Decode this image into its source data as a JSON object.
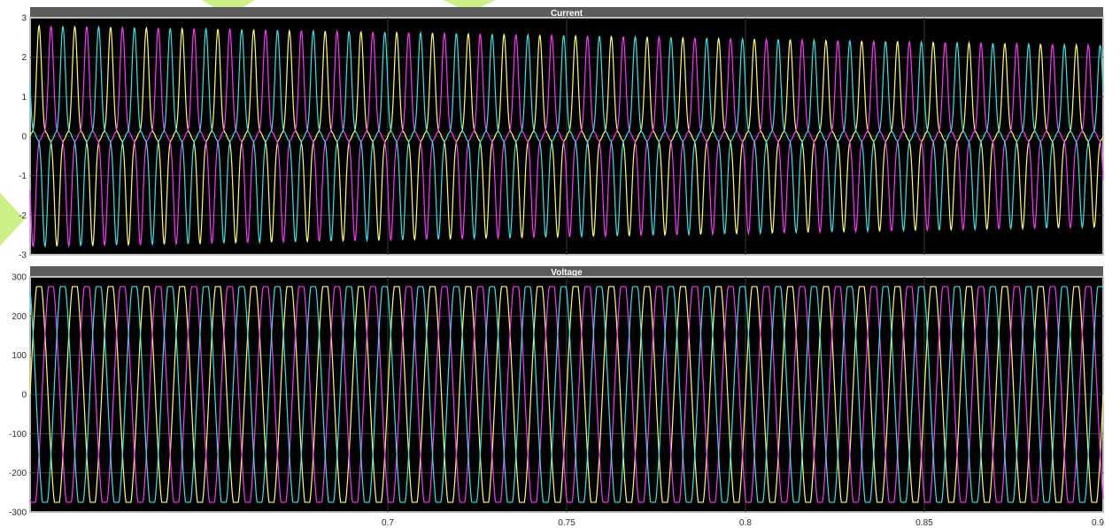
{
  "theme": {
    "background": "#000000",
    "axes_frame": "#bfbfbf",
    "grid": "#3d3d3d",
    "title_bar": "#5b5b5b",
    "title_text": "#ffffff",
    "tick_text": "#2d2d2d",
    "phase_colors": [
      "#ffff66",
      "#ff33ff",
      "#33e6e6"
    ],
    "watermark": "#c8ee7a"
  },
  "chart_data": [
    {
      "type": "line",
      "title": "Current",
      "xlabel": "",
      "ylabel": "",
      "xlim": [
        0.6,
        0.9
      ],
      "ylim": [
        -3,
        3
      ],
      "yticks": [
        -3,
        -2,
        -1,
        0,
        1,
        2,
        3
      ],
      "xticks": [
        0.7,
        0.75,
        0.8,
        0.85,
        0.9
      ],
      "grid": true,
      "frequency_hz": 100,
      "peak_start": 2.8,
      "peak_end": 2.3,
      "phase_offsets_deg": [
        0,
        -120,
        120
      ],
      "series": [
        {
          "color": "#ffff66"
        },
        {
          "color": "#ff33ff"
        },
        {
          "color": "#33e6e6"
        }
      ]
    },
    {
      "type": "line",
      "title": "Voltage",
      "xlabel": "",
      "ylabel": "",
      "xlim": [
        0.6,
        0.9
      ],
      "ylim": [
        -300,
        300
      ],
      "yticks": [
        -300,
        -200,
        -100,
        0,
        100,
        200,
        300
      ],
      "xticks": [
        0.7,
        0.75,
        0.8,
        0.85,
        0.9
      ],
      "grid": true,
      "frequency_hz": 100,
      "amplitude": 275,
      "phase_offsets_deg": [
        0,
        -120,
        120
      ],
      "series": [
        {
          "color": "#ffff66"
        },
        {
          "color": "#ff33ff"
        },
        {
          "color": "#33e6e6"
        }
      ]
    }
  ]
}
